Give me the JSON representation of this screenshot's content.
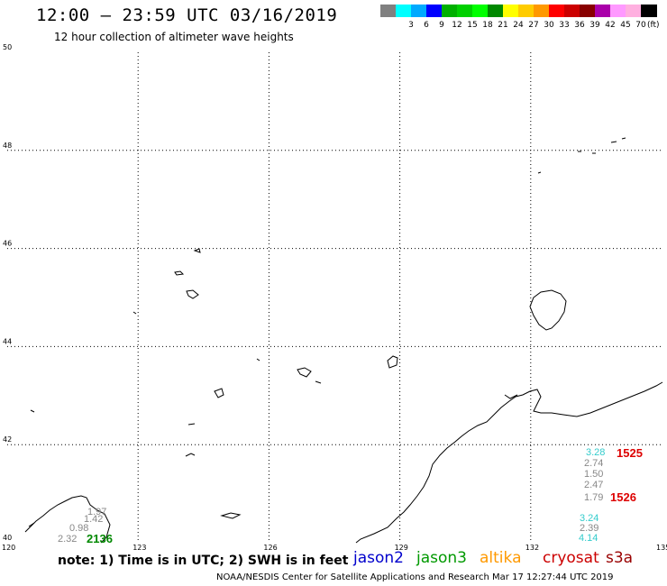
{
  "header": {
    "title": "12:00 – 23:59 UTC 03/16/2019",
    "subtitle": "12 hour collection of altimeter wave heights"
  },
  "legend": {
    "unit": "(ft)",
    "swatches": [
      {
        "color": "#808080",
        "label": ""
      },
      {
        "color": "#00ffff",
        "label": "3"
      },
      {
        "color": "#00aaff",
        "label": "6"
      },
      {
        "color": "#0000ff",
        "label": "9"
      },
      {
        "color": "#00b000",
        "label": "12"
      },
      {
        "color": "#00d000",
        "label": "15"
      },
      {
        "color": "#00ff00",
        "label": "18"
      },
      {
        "color": "#008800",
        "label": "21"
      },
      {
        "color": "#ffff00",
        "label": "24"
      },
      {
        "color": "#ffcc00",
        "label": "27"
      },
      {
        "color": "#ff9900",
        "label": "30"
      },
      {
        "color": "#ff0000",
        "label": "33"
      },
      {
        "color": "#cc0000",
        "label": "36"
      },
      {
        "color": "#880000",
        "label": "39"
      },
      {
        "color": "#aa00aa",
        "label": "42"
      },
      {
        "color": "#ff99ff",
        "label": "45"
      },
      {
        "color": "#ffb0e0",
        "label": "70"
      },
      {
        "color": "#000000",
        "label": ""
      }
    ]
  },
  "axes": {
    "x_ticks": [
      "120",
      "123",
      "126",
      "129",
      "132",
      "135"
    ],
    "y_ticks": [
      "50",
      "48",
      "46",
      "44",
      "42",
      "40"
    ]
  },
  "observations": [
    {
      "value": "1.97",
      "color": "#888888"
    },
    {
      "value": "1.42",
      "color": "#888888"
    },
    {
      "value": "0.98",
      "color": "#888888"
    },
    {
      "value": "2.32",
      "color": "#888888"
    },
    {
      "value": "3.28",
      "color": "#33cccc"
    },
    {
      "value": "2.74",
      "color": "#888888"
    },
    {
      "value": "1.50",
      "color": "#888888"
    },
    {
      "value": "2.47",
      "color": "#888888"
    },
    {
      "value": "1.79",
      "color": "#888888"
    },
    {
      "value": "3.24",
      "color": "#33cccc"
    },
    {
      "value": "2.39",
      "color": "#888888"
    },
    {
      "value": "4.14",
      "color": "#33cccc"
    }
  ],
  "track_times": [
    {
      "value": "2136",
      "color": "#008800"
    },
    {
      "value": "1525",
      "color": "#dd0000"
    },
    {
      "value": "1526",
      "color": "#dd0000"
    }
  ],
  "footer": {
    "note": "note: 1) Time is in UTC; 2) SWH is in feet",
    "satellites": [
      {
        "name": "jason2",
        "color": "#0000cc"
      },
      {
        "name": "jason3",
        "color": "#009900"
      },
      {
        "name": "altika",
        "color": "#ff9900"
      },
      {
        "name": "cryosat",
        "color": "#cc0000"
      },
      {
        "name": "s3a",
        "color": "#990000"
      }
    ],
    "credit": "NOAA/NESDIS Center for Satellite Applications and Research   Mar 17 12:27:44 UTC 2019"
  }
}
